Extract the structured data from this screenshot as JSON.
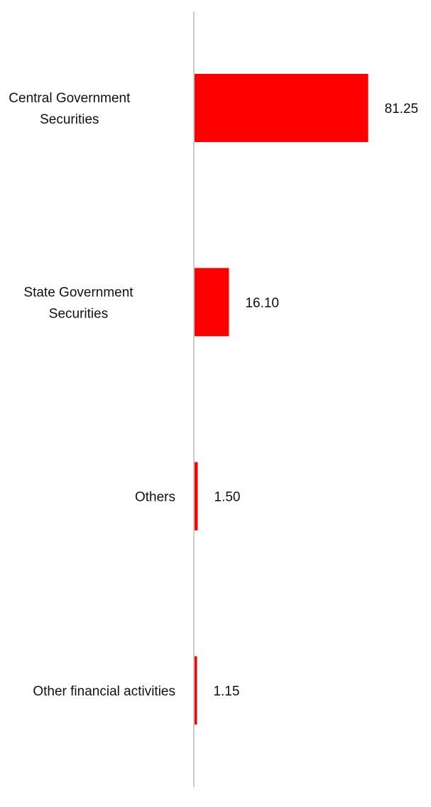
{
  "chart_data": {
    "type": "bar",
    "orientation": "horizontal",
    "categories": [
      [
        "Central Government",
        "Securities"
      ],
      [
        "State Government",
        "Securities"
      ],
      [
        "Others"
      ],
      [
        "Other financial activities"
      ]
    ],
    "values": [
      81.25,
      16.1,
      1.5,
      1.15
    ],
    "value_labels": [
      "81.25",
      "16.10",
      "1.50",
      "1.15"
    ],
    "xlim": [
      0,
      100
    ],
    "grid": false,
    "legend": "none",
    "colors": {
      "bar": "#ff0000",
      "axis": "#cccccc",
      "text": "#111111"
    }
  }
}
